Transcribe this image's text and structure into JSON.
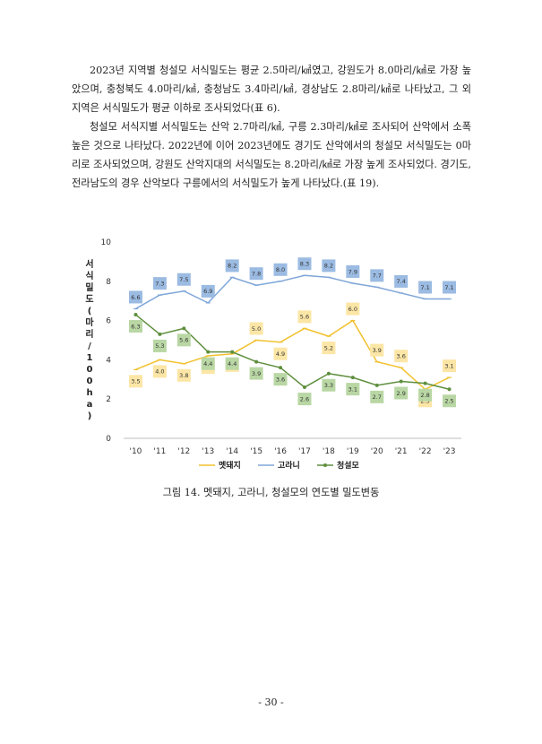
{
  "document": {
    "paragraphs": [
      "2023년 지역별 청설모 서식밀도는 평균 2.5마리/㎢였고, 강원도가 8.0마리/㎢로 가장 높았으며, 충청북도 4.0마리/㎢, 충청남도 3.4마리/㎢, 경상남도 2.8마리/㎢로 나타났고, 그 외 지역은 서식밀도가 평균 이하로 조사되었다(표 6).",
      "청설모 서식지별 서식밀도는 산악 2.7마리/㎢, 구릉 2.3마리/㎢로 조사되어 산악에서 소폭 높은 것으로 나타났다. 2022년에 이어 2023년에도 경기도 산악에서의 청설모 서식밀도는 0마리로 조사되었으며, 강원도 산악지대의 서식밀도는 8.2마리/㎢로 가장 높게 조사되었다. 경기도, 전라남도의 경우 산악보다 구릉에서의 서식밀도가 높게 나타났다.(표 19)."
    ],
    "caption": "그림 14. 멧돼지, 고라니, 청설모의 연도별 밀도변동",
    "page_number": "- 30 -"
  },
  "chart_data": {
    "type": "line",
    "categories": [
      "'10",
      "'11",
      "'12",
      "'13",
      "'14",
      "'15",
      "'16",
      "'17",
      "'18",
      "'19",
      "'20",
      "'21",
      "'22",
      "'23"
    ],
    "ylabel": "서식밀도(마리/100ha)",
    "ylim": [
      0,
      10
    ],
    "yticks": [
      0,
      2,
      4,
      6,
      8,
      10
    ],
    "grid": false,
    "legend_position": "bottom",
    "series": [
      {
        "name": "멧돼지",
        "color": "#f2c12e",
        "label_bg": "#fce6a6",
        "label_side": "mixed",
        "values": [
          3.5,
          4.0,
          3.8,
          4.2,
          4.3,
          5.0,
          4.9,
          5.6,
          5.2,
          6.0,
          3.9,
          3.6,
          2.5,
          3.1
        ],
        "labels": [
          "3.5",
          "4.0",
          "3.8",
          "4.2",
          "4.3",
          "5.0",
          "4.9",
          "5.6",
          "5.2",
          "6.0",
          "3.9",
          "3.6",
          "2.5",
          "3.1"
        ]
      },
      {
        "name": "고라니",
        "color": "#7fa6d8",
        "label_bg": "#9bbbe2",
        "label_side": "above",
        "values": [
          6.6,
          7.3,
          7.5,
          6.9,
          8.2,
          7.8,
          8.0,
          8.3,
          8.2,
          7.9,
          7.7,
          7.4,
          7.1,
          7.1
        ],
        "labels": [
          "6.6",
          "7.3",
          "7.5",
          "6.9",
          "8.2",
          "7.8",
          "8.0",
          "8.3",
          "8.2",
          "7.9",
          "7.7",
          "7.4",
          "7.1",
          "7.1"
        ]
      },
      {
        "name": "청설모",
        "color": "#5f8f3e",
        "label_bg": "#b9d7a4",
        "label_side": "below",
        "values": [
          6.3,
          5.3,
          5.6,
          4.4,
          4.4,
          3.9,
          3.6,
          2.6,
          3.3,
          3.1,
          2.7,
          2.9,
          2.8,
          2.5
        ],
        "labels": [
          "6.3",
          "5.3",
          "5.6",
          "4.4",
          "4.4",
          "3.9",
          "3.6",
          "2.6",
          "3.3",
          "3.1",
          "2.7",
          "2.9",
          "2.8",
          "2.5"
        ]
      }
    ]
  }
}
